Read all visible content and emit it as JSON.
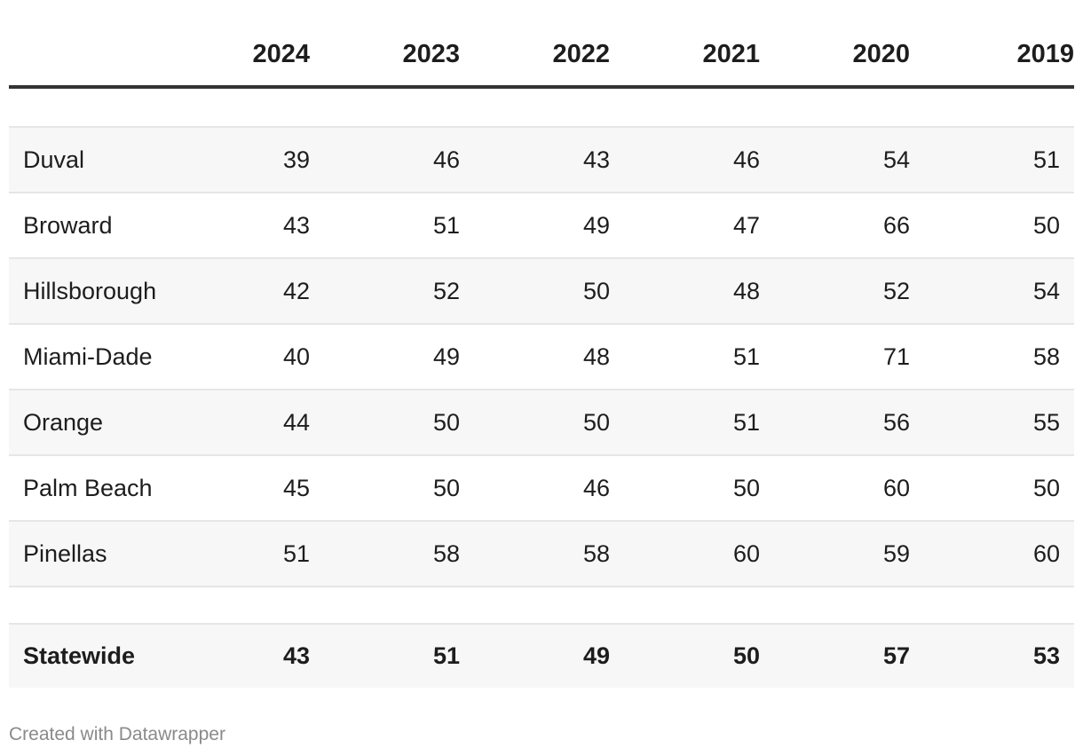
{
  "chart_data": {
    "type": "table",
    "columns": [
      "",
      "2024",
      "2023",
      "2022",
      "2021",
      "2020",
      "2019"
    ],
    "rows": [
      {
        "name": "Duval",
        "values": [
          "39",
          "46",
          "43",
          "46",
          "54",
          "51"
        ]
      },
      {
        "name": "Broward",
        "values": [
          "43",
          "51",
          "49",
          "47",
          "66",
          "50"
        ]
      },
      {
        "name": "Hillsborough",
        "values": [
          "42",
          "52",
          "50",
          "48",
          "52",
          "54"
        ]
      },
      {
        "name": "Miami-Dade",
        "values": [
          "40",
          "49",
          "48",
          "51",
          "71",
          "58"
        ]
      },
      {
        "name": "Orange",
        "values": [
          "44",
          "50",
          "50",
          "51",
          "56",
          "55"
        ]
      },
      {
        "name": "Palm Beach",
        "values": [
          "45",
          "50",
          "46",
          "50",
          "60",
          "50"
        ]
      },
      {
        "name": "Pinellas",
        "values": [
          "51",
          "58",
          "58",
          "60",
          "59",
          "60"
        ]
      }
    ],
    "total": {
      "name": "Statewide",
      "values": [
        "43",
        "51",
        "49",
        "50",
        "57",
        "53"
      ]
    }
  },
  "footer": {
    "credit": "Created with Datawrapper"
  },
  "colors": {
    "text": "#1d1d1d",
    "row_shade": "#f7f7f7",
    "rule": "#333333",
    "footer": "#8a8a8a"
  }
}
